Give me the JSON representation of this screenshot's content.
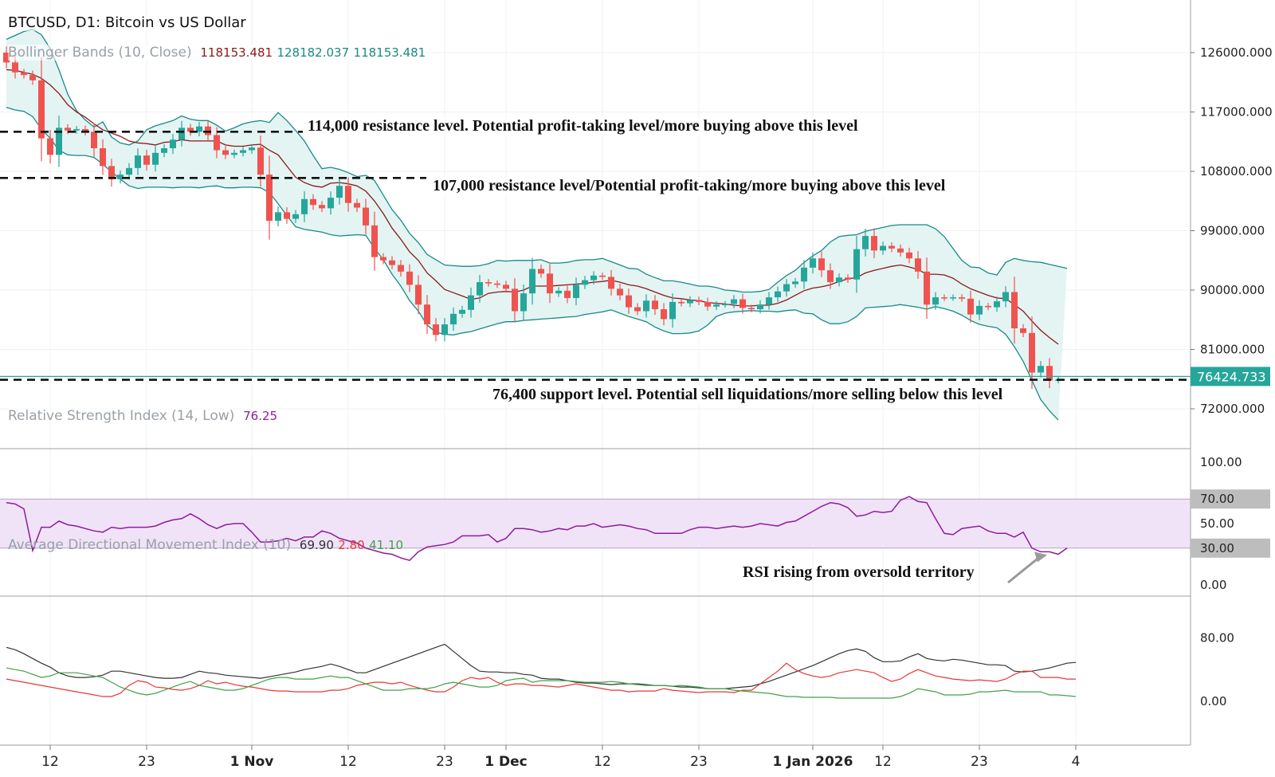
{
  "title": "BTCUSD, D1: Bitcoin vs US Dollar",
  "bollinger": {
    "label": "Bollinger Bands (10, Close)",
    "upper_value": "118153.481",
    "middle_value": "128182.037",
    "lower_value": "118153.481"
  },
  "rsi_legend": {
    "label": "Relative Strength Index (14, Low)",
    "value": "76.25"
  },
  "adx_legend": {
    "label": "Average Directional Movement Index (10)",
    "adx": "69.90",
    "minus_di": "2.80",
    "plus_di": "41.10"
  },
  "current_price_label": "76424.733",
  "annotations": {
    "r114": "114,000 resistance level. Potential profit-taking level/more buying above this level",
    "r107": "107,000 resistance level/Potential profit-taking/more buying above this level",
    "s76": "76,400 support level. Potential sell liquidations/more selling below this level",
    "rsi": "RSI rising from oversold territory"
  },
  "colors": {
    "up": "#26a69a",
    "down": "#ef5350",
    "band": "#1a8a86",
    "band_fill": "#e3f4f3",
    "mid": "#8b1a1a",
    "rsi_line": "#8e1c9c",
    "rsi_fill": "#f0e3f8",
    "adx": "#333333",
    "minus_di": "#e53935",
    "plus_di": "#43a047",
    "price_line": "#26a69a"
  },
  "chart_data": [
    {
      "type": "candlestick",
      "name": "price",
      "x_tick_labels": [
        "12",
        "23",
        "1 Nov",
        "12",
        "23",
        "1 Dec",
        "12",
        "23",
        "1 Jan 2026",
        "12",
        "23",
        "4"
      ],
      "y_ticks": [
        126000,
        117000,
        108000,
        99000,
        90000,
        81000,
        72000
      ],
      "y_tick_labels": [
        "126000.000",
        "117000.000",
        "108000.000",
        "99000.000",
        "90000.000",
        "81000.000",
        "72000.000"
      ],
      "ylim": [
        70000,
        130000
      ],
      "last_price": 76424.733,
      "horizontal_levels": [
        114000,
        107000,
        76400
      ],
      "close": [
        124500,
        123000,
        122600,
        121800,
        113000,
        110500,
        114600,
        114200,
        114400,
        114000,
        111500,
        108800,
        106800,
        107500,
        108500,
        110400,
        109000,
        110800,
        111500,
        112800,
        114600,
        114000,
        114800,
        113500,
        111200,
        110500,
        110800,
        111200,
        111600,
        107500,
        100500,
        101800,
        100800,
        101500,
        103800,
        102900,
        102400,
        104000,
        105800,
        103200,
        102500,
        99800,
        95000,
        94500,
        93800,
        92800,
        90800,
        87800,
        84800,
        83200,
        84800,
        86400,
        87000,
        89200,
        91200,
        91000,
        90800,
        90200,
        86800,
        89500,
        93200,
        92500,
        89500,
        89900,
        88800,
        90800,
        91500,
        92200,
        92000,
        90200,
        89200,
        87400,
        86800,
        88400,
        87100,
        85600,
        88200,
        88000,
        88500,
        88200,
        87500,
        87800,
        87900,
        88600,
        87300,
        87100,
        87800,
        88900,
        89800,
        90900,
        91300,
        93400,
        94800,
        93000,
        91200,
        91900,
        91600,
        96200,
        98200,
        96000,
        96700,
        96300,
        95700,
        94800,
        92800,
        87800,
        88900,
        88800,
        88900,
        88700,
        86300,
        87600,
        87400,
        88300,
        89700,
        84200,
        83500,
        77500,
        78500,
        76300,
        76424.733
      ],
      "bb_upper": [
        128000,
        128600,
        129200,
        129500,
        128700,
        126600,
        123400,
        119700,
        117200,
        115800,
        114700,
        115500,
        113200,
        112300,
        112000,
        112600,
        114300,
        114900,
        115300,
        115700,
        116400,
        115900,
        115700,
        115700,
        115000,
        114100,
        114600,
        115200,
        115500,
        115700,
        115400,
        116900,
        115700,
        114200,
        112600,
        110400,
        108400,
        108600,
        108300,
        107800,
        107200,
        107400,
        106600,
        104400,
        102200,
        100600,
        98600,
        97200,
        95400,
        94600,
        93800,
        93700,
        93600,
        93600,
        93700,
        94000,
        94500,
        94400,
        94500,
        94500,
        94500,
        94600,
        94100,
        94100,
        94200,
        94500,
        94600,
        94600,
        94800,
        94300,
        93800,
        93300,
        93200,
        92400,
        91900,
        91400,
        91400,
        91200,
        90900,
        90600,
        90600,
        90400,
        90000,
        89900,
        89700,
        89700,
        89800,
        90100,
        91200,
        92200,
        93000,
        94200,
        95200,
        96000,
        97300,
        98100,
        98300,
        98400,
        98900,
        99200,
        99500,
        99800,
        99900,
        99900,
        99900,
        99900,
        99300,
        98100,
        96300,
        94500,
        93500,
        93400,
        92600,
        92300,
        94200,
        94800,
        94500,
        94300,
        94200,
        93900,
        93600,
        93300
      ],
      "bb_middle": [
        123400,
        123300,
        123000,
        122700,
        122100,
        121100,
        119800,
        118100,
        117000,
        116200,
        115200,
        114300,
        113800,
        113300,
        112600,
        112300,
        112200,
        112000,
        112400,
        112500,
        112800,
        112600,
        112600,
        112600,
        112600,
        112000,
        111800,
        111800,
        112000,
        112100,
        111200,
        110500,
        108800,
        107100,
        106300,
        105800,
        105600,
        106200,
        106300,
        106100,
        105800,
        105000,
        103500,
        101600,
        99400,
        97700,
        95800,
        94500,
        92600,
        91400,
        90100,
        89600,
        89100,
        88600,
        88800,
        89500,
        89700,
        89800,
        89700,
        90000,
        90600,
        90600,
        90600,
        90700,
        90800,
        90900,
        91000,
        91200,
        91300,
        91500,
        91200,
        90800,
        90600,
        90200,
        89700,
        89200,
        88800,
        88700,
        88500,
        88400,
        88100,
        88000,
        87900,
        87700,
        87600,
        87600,
        87700,
        87700,
        88000,
        88500,
        89200,
        89900,
        90300,
        90500,
        90800,
        91300,
        91700,
        91900,
        92600,
        93000,
        93300,
        93600,
        93800,
        93500,
        93100,
        92400,
        92400,
        92300,
        91800,
        90900,
        90200,
        89700,
        89200,
        88800,
        88700,
        87800,
        86800,
        85300,
        83900,
        82800,
        81800
      ],
      "bb_lower": [
        117700,
        117300,
        117100,
        116300,
        114400,
        113000,
        111200,
        110500,
        110400,
        110400,
        110100,
        109100,
        107900,
        106800,
        105800,
        105400,
        105600,
        105600,
        105600,
        105500,
        105600,
        105600,
        105500,
        105700,
        105800,
        105500,
        105500,
        105600,
        105600,
        105500,
        104800,
        103100,
        101300,
        99600,
        99200,
        99000,
        98800,
        98400,
        98200,
        98300,
        98400,
        98300,
        96300,
        94600,
        92400,
        90600,
        88400,
        86800,
        84700,
        83600,
        83300,
        83200,
        83500,
        83700,
        84100,
        84500,
        84900,
        85200,
        85200,
        85400,
        85500,
        85600,
        85700,
        85800,
        85900,
        86000,
        86300,
        86500,
        86700,
        87000,
        86500,
        86000,
        85600,
        85200,
        84400,
        83800,
        83400,
        83400,
        83500,
        83800,
        84700,
        86000,
        86500,
        86700,
        86800,
        86900,
        86800,
        86800,
        86700,
        86900,
        87000,
        86500,
        86400,
        85500,
        84900,
        84900,
        85200,
        86000,
        87300,
        87400,
        87500,
        87600,
        87800,
        87600,
        87400,
        87100,
        87500,
        87200,
        86800,
        86200,
        85400,
        84800,
        84500,
        84300,
        83300,
        81400,
        79200,
        76300,
        73400,
        71700,
        70300
      ]
    },
    {
      "type": "line",
      "name": "rsi",
      "y_ticks": [
        100,
        70,
        50,
        30,
        0
      ],
      "y_tick_labels": [
        "100.00",
        "70.00",
        "50.00",
        "30.00",
        "0.00"
      ],
      "ylim": [
        0,
        100
      ],
      "overbought": 70,
      "oversold": 30,
      "values": [
        67,
        66,
        62,
        28,
        47,
        47,
        52,
        49,
        48,
        46,
        44,
        43,
        47,
        46,
        47,
        47,
        47,
        48,
        51,
        53,
        54,
        58,
        54,
        49,
        46,
        49,
        50,
        50,
        43,
        35,
        35,
        36,
        38,
        36,
        39,
        39,
        44,
        42,
        38,
        36,
        34,
        30,
        28,
        26,
        25,
        22,
        20,
        27,
        31,
        32,
        33,
        35,
        40,
        40,
        40,
        41,
        35,
        38,
        46,
        46,
        45,
        43,
        44,
        46,
        45,
        48,
        48,
        50,
        47,
        48,
        49,
        48,
        46,
        45,
        42,
        42,
        42,
        42,
        45,
        47,
        47,
        46,
        47,
        48,
        47,
        48,
        50,
        49,
        48,
        51,
        52,
        56,
        60,
        64,
        67,
        66,
        63,
        56,
        57,
        60,
        59,
        60,
        69,
        72,
        68,
        67,
        54,
        42,
        41,
        46,
        47,
        48,
        44,
        42,
        42,
        39,
        43,
        30,
        27,
        27,
        25,
        30
      ],
      "annotation_arrow_target_index": 118
    },
    {
      "type": "line",
      "name": "adx",
      "y_ticks": [
        80,
        0
      ],
      "y_tick_labels": [
        "80.00",
        "0.00"
      ],
      "ylim": [
        -25,
        115
      ],
      "series": [
        {
          "values": [
            68,
            65,
            60,
            54,
            48,
            43,
            36,
            32,
            30,
            30,
            31,
            33,
            38,
            38,
            36,
            34,
            32,
            30,
            29,
            29,
            30,
            34,
            38,
            36,
            35,
            33,
            32,
            31,
            30,
            29,
            31,
            33,
            35,
            37,
            40,
            42,
            44,
            47,
            44,
            40,
            36,
            36,
            40,
            44,
            48,
            52,
            56,
            60,
            64,
            68,
            72,
            63,
            54,
            45,
            38,
            37,
            37,
            36,
            36,
            34,
            33,
            29,
            28,
            28,
            26,
            24,
            23,
            23,
            22,
            21,
            22,
            22,
            22,
            21,
            20,
            20,
            19,
            18,
            18,
            17,
            16,
            16,
            16,
            17,
            18,
            19,
            22,
            25,
            29,
            33,
            37,
            41,
            45,
            50,
            55,
            60,
            64,
            66,
            63,
            55,
            50,
            50,
            51,
            56,
            60,
            54,
            52,
            51,
            53,
            52,
            50,
            48,
            46,
            46,
            45,
            38,
            37,
            38,
            40,
            42,
            45,
            48,
            49
          ]
        },
        {
          "values": [
            28,
            26,
            24,
            22,
            20,
            18,
            16,
            14,
            12,
            10,
            8,
            6,
            6,
            10,
            20,
            26,
            24,
            18,
            17,
            15,
            14,
            16,
            20,
            26,
            22,
            24,
            21,
            19,
            18,
            16,
            14,
            13,
            13,
            12,
            12,
            12,
            12,
            14,
            14,
            16,
            20,
            22,
            24,
            24,
            22,
            24,
            20,
            17,
            14,
            12,
            12,
            18,
            26,
            30,
            28,
            30,
            24,
            20,
            22,
            22,
            20,
            20,
            19,
            18,
            20,
            22,
            20,
            18,
            16,
            14,
            14,
            12,
            13,
            13,
            13,
            16,
            14,
            13,
            12,
            11,
            12,
            12,
            12,
            11,
            14,
            14,
            22,
            30,
            38,
            48,
            40,
            35,
            32,
            30,
            32,
            36,
            38,
            40,
            38,
            36,
            30,
            25,
            28,
            35,
            40,
            36,
            32,
            30,
            28,
            27,
            26,
            27,
            26,
            25,
            28,
            34,
            38,
            38,
            30,
            30,
            30,
            28,
            28
          ]
        },
        {
          "values": [
            42,
            40,
            38,
            34,
            30,
            32,
            36,
            36,
            36,
            34,
            32,
            30,
            24,
            18,
            14,
            10,
            8,
            10,
            14,
            18,
            22,
            25,
            20,
            18,
            16,
            14,
            14,
            16,
            20,
            24,
            28,
            30,
            30,
            28,
            28,
            28,
            30,
            32,
            30,
            30,
            26,
            22,
            18,
            14,
            14,
            14,
            16,
            16,
            16,
            18,
            22,
            24,
            22,
            20,
            18,
            18,
            20,
            26,
            28,
            29,
            24,
            26,
            26,
            26,
            26,
            25,
            24,
            24,
            24,
            25,
            24,
            22,
            21,
            20,
            20,
            20,
            19,
            20,
            19,
            18,
            16,
            16,
            16,
            14,
            13,
            12,
            11,
            10,
            8,
            6,
            6,
            5,
            5,
            5,
            5,
            4,
            4,
            4,
            4,
            4,
            4,
            4,
            6,
            10,
            16,
            14,
            12,
            8,
            8,
            8,
            9,
            12,
            12,
            13,
            14,
            12,
            12,
            12,
            12,
            8,
            8,
            7,
            6
          ]
        }
      ]
    }
  ]
}
